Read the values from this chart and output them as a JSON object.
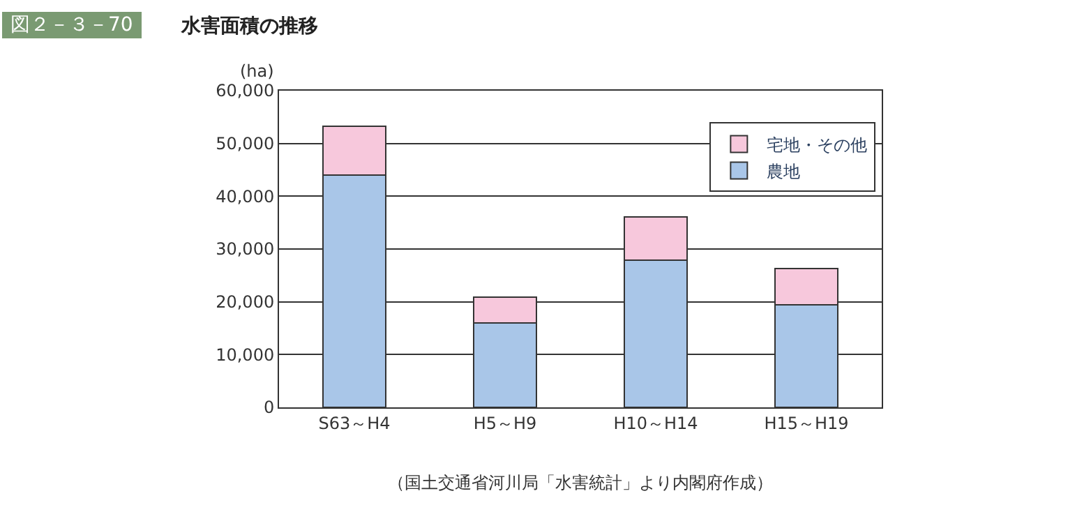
{
  "chart_data": {
    "type": "bar",
    "title": "水害面積の推移",
    "subtitle": "図２－３－70",
    "ylabel": "(ha)",
    "categories": [
      "S63～H4",
      "H5～H9",
      "H10～H14",
      "H15～H19"
    ],
    "series": [
      {
        "name": "農地",
        "color": "#a9c6e8",
        "values": [
          44000,
          16000,
          27900,
          19400
        ]
      },
      {
        "name": "宅地・その他",
        "color": "#f7c8dc",
        "values": [
          9200,
          4900,
          8200,
          6900
        ]
      }
    ],
    "stacked": true,
    "ylim": [
      0,
      60000
    ],
    "yticks": [
      {
        "value": 0,
        "label": "0"
      },
      {
        "value": 10000,
        "label": "10,000"
      },
      {
        "value": 20000,
        "label": "20,000"
      },
      {
        "value": 30000,
        "label": "30,000"
      },
      {
        "value": 40000,
        "label": "40,000"
      },
      {
        "value": 50000,
        "label": "50,000"
      },
      {
        "value": 60000,
        "label": "60,000"
      }
    ],
    "grid": "y",
    "legend": "top right",
    "annotations": [
      "（国土交通省河川局「水害統計」より内閣府作成）"
    ]
  }
}
